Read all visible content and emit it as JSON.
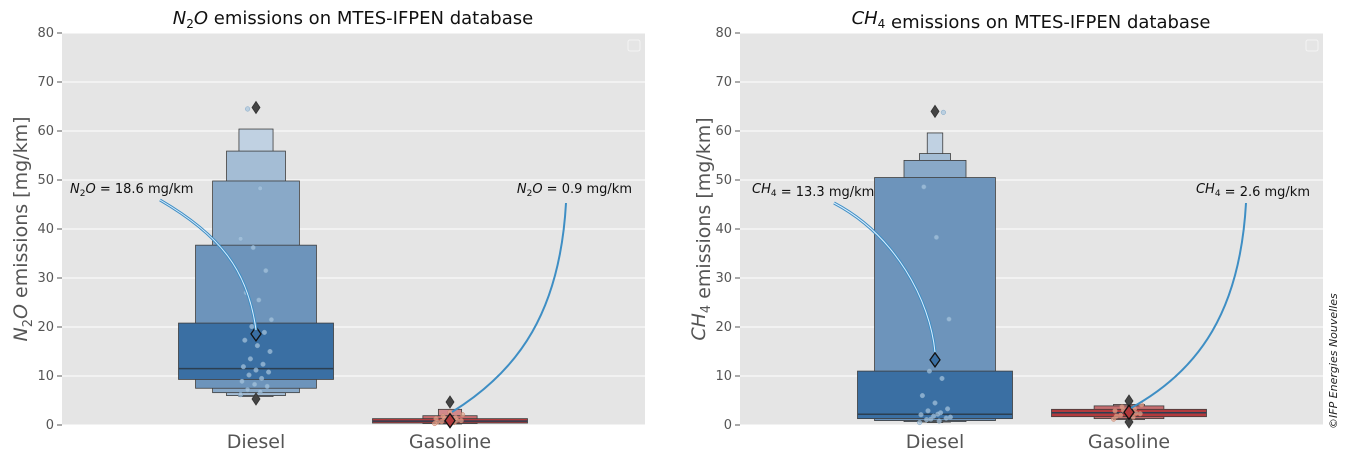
{
  "chart_data": [
    {
      "type": "boxen",
      "title_sym": "N",
      "title_sub": "2",
      "title_rest": "O",
      "title_suffix": " emissions on MTES-IFPEN database",
      "ylabel_sym": "N",
      "ylabel_sub": "2",
      "ylabel_rest": "O",
      "ylabel_suffix": " emissions [mg/km]",
      "ylim": [
        0,
        80
      ],
      "yticks": [
        "0",
        "10",
        "20",
        "30",
        "40",
        "50",
        "60",
        "70",
        "80"
      ],
      "categories": [
        "Diesel",
        "Gasoline"
      ],
      "series": [
        {
          "category": "Diesel",
          "color": "#3a6fa3",
          "median": 11.5,
          "mean": 18.6,
          "boxes": [
            {
              "lo": 9.3,
              "hi": 20.8,
              "w": 1.0
            },
            {
              "lo": 7.5,
              "hi": 36.7,
              "w": 0.78
            },
            {
              "lo": 6.6,
              "hi": 49.8,
              "w": 0.56
            },
            {
              "lo": 6.0,
              "hi": 55.9,
              "w": 0.38
            },
            {
              "lo": 5.8,
              "hi": 60.4,
              "w": 0.22
            }
          ],
          "outliers": [
            5.3,
            64.8
          ],
          "points": [
            6.2,
            6.8,
            7.2,
            7.9,
            8.3,
            8.9,
            9.5,
            10.2,
            10.8,
            11.2,
            11.9,
            12.4,
            13.5,
            15.0,
            16.2,
            17.3,
            18.9,
            20.1,
            21.5,
            25.5,
            27.0,
            31.5,
            36.2,
            38.0,
            48.3,
            64.5
          ]
        },
        {
          "category": "Gasoline",
          "color": "#b23a3d",
          "median": 0.8,
          "mean": 0.9,
          "boxes": [
            {
              "lo": 0.4,
              "hi": 1.3,
              "w": 1.0
            },
            {
              "lo": 0.3,
              "hi": 1.9,
              "w": 0.35
            },
            {
              "lo": 0.2,
              "hi": 3.2,
              "w": 0.15
            }
          ],
          "outliers": [
            4.7
          ],
          "points": [
            0.3,
            0.5,
            0.7,
            0.9,
            1.1,
            1.3,
            1.5,
            1.8,
            2.1,
            2.6,
            0.6,
            1.0,
            1.4
          ]
        }
      ],
      "annotations": [
        {
          "sym": "N",
          "sub": "2",
          "rest": "O",
          "text": " = 18.6 mg/km"
        },
        {
          "sym": "N",
          "sub": "2",
          "rest": "O",
          "text": " = 0.9 mg/km"
        }
      ],
      "grid": true,
      "legend": "top-right (empty)"
    },
    {
      "type": "boxen",
      "title_sym": "CH",
      "title_sub": "4",
      "title_rest": "",
      "title_suffix": " emissions on MTES-IFPEN database",
      "ylabel_sym": "CH",
      "ylabel_sub": "4",
      "ylabel_rest": "",
      "ylabel_suffix": " emissions [mg/km]",
      "ylim": [
        0,
        80
      ],
      "yticks": [
        "0",
        "10",
        "20",
        "30",
        "40",
        "50",
        "60",
        "70",
        "80"
      ],
      "categories": [
        "Diesel",
        "Gasoline"
      ],
      "series": [
        {
          "category": "Diesel",
          "color": "#3a6fa3",
          "median": 2.2,
          "mean": 13.3,
          "boxes": [
            {
              "lo": 1.3,
              "hi": 11.0,
              "w": 1.0
            },
            {
              "lo": 0.9,
              "hi": 50.5,
              "w": 0.78
            },
            {
              "lo": 0.7,
              "hi": 54.0,
              "w": 0.4
            },
            {
              "lo": 0.6,
              "hi": 55.4,
              "w": 0.2
            },
            {
              "lo": 0.5,
              "hi": 59.6,
              "w": 0.1
            }
          ],
          "outliers": [
            64.0
          ],
          "points": [
            0.5,
            0.8,
            1.1,
            1.4,
            1.8,
            2.1,
            2.5,
            2.9,
            3.3,
            4.5,
            6.0,
            9.5,
            11.0,
            21.6,
            38.3,
            48.6,
            63.8,
            1.2,
            1.6,
            2.2
          ]
        },
        {
          "category": "Gasoline",
          "color": "#b23a3d",
          "median": 2.5,
          "mean": 2.6,
          "boxes": [
            {
              "lo": 1.7,
              "hi": 3.2,
              "w": 1.0
            },
            {
              "lo": 1.3,
              "hi": 3.9,
              "w": 0.45
            },
            {
              "lo": 1.1,
              "hi": 4.2,
              "w": 0.2
            }
          ],
          "outliers": [
            0.6,
            4.9
          ],
          "points": [
            1.2,
            1.6,
            2.0,
            2.3,
            2.6,
            2.9,
            3.3,
            3.7,
            4.1,
            4.6,
            1.8,
            2.4,
            3.0
          ]
        }
      ],
      "annotations": [
        {
          "sym": "CH",
          "sub": "4",
          "rest": "",
          "text": " = 13.3 mg/km"
        },
        {
          "sym": "CH",
          "sub": "4",
          "rest": "",
          "text": " = 2.6 mg/km"
        }
      ],
      "grid": true,
      "legend": "top-right (empty)"
    }
  ],
  "watermark": "©IFP Energies Nouvelles",
  "colors": {
    "panel_bg": "#e5e5e5",
    "grid": "#ffffff",
    "annotation_arrow": "#3e8ec4"
  }
}
